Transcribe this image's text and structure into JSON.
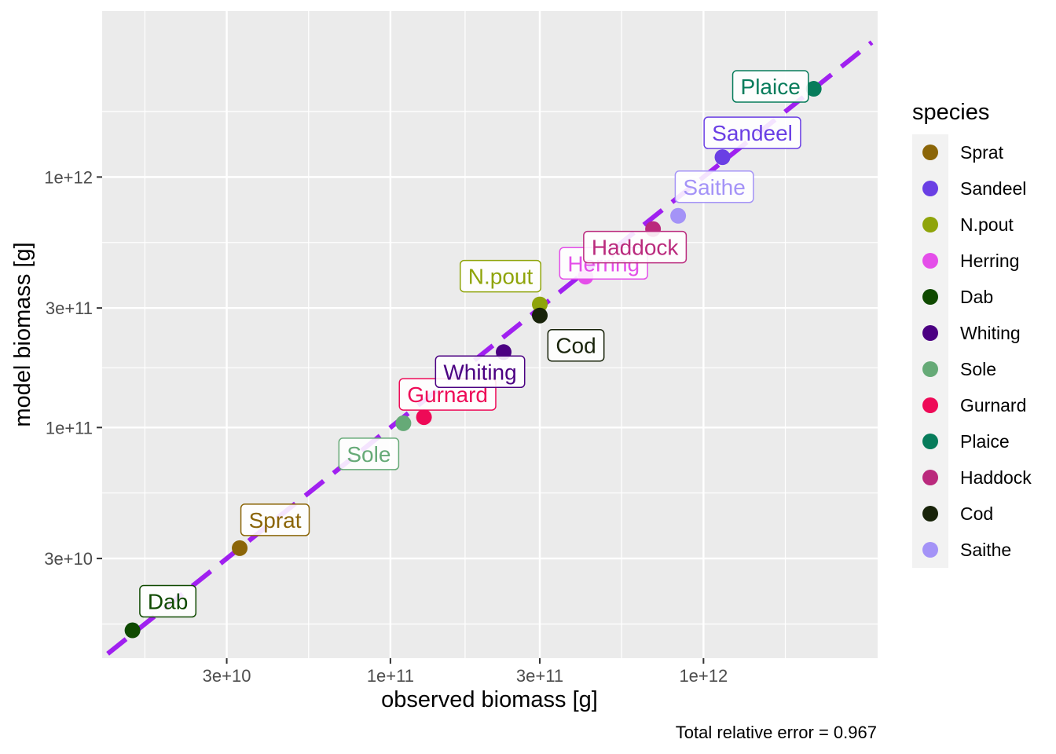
{
  "chart_data": {
    "type": "scatter",
    "x_scale": "log10",
    "y_scale": "log10",
    "xlabel": "observed biomass [g]",
    "ylabel": "model biomass [g]",
    "x_ticks": [
      {
        "value": 30000000000.0,
        "label": "3e+10"
      },
      {
        "value": 100000000000.0,
        "label": "1e+11"
      },
      {
        "value": 300000000000.0,
        "label": "3e+11"
      },
      {
        "value": 1000000000000.0,
        "label": "1e+12"
      }
    ],
    "y_ticks": [
      {
        "value": 30000000000.0,
        "label": "3e+10"
      },
      {
        "value": 100000000000.0,
        "label": "1e+11"
      },
      {
        "value": 300000000000.0,
        "label": "3e+11"
      },
      {
        "value": 1000000000000.0,
        "label": "1e+12"
      }
    ],
    "xlim": [
      12000000000.0,
      3600000000000.0
    ],
    "ylim": [
      12000000000.0,
      4600000000000.0
    ],
    "reference_line": {
      "style": "dashed",
      "color": "#a020f0",
      "slope": 1
    },
    "caption": "Total relative error = 0.967",
    "legend": {
      "title": "species",
      "position": "right"
    },
    "grid": true,
    "points": [
      {
        "species": "Sprat",
        "observed": 33000000000.0,
        "model": 33000000000.0,
        "color": "#8b6508"
      },
      {
        "species": "Sandeel",
        "observed": 1150000000000.0,
        "model": 1200000000000.0,
        "color": "#6a3fe4"
      },
      {
        "species": "N.pout",
        "observed": 300000000000.0,
        "model": 310000000000.0,
        "color": "#8fa40a"
      },
      {
        "species": "Herring",
        "observed": 420000000000.0,
        "model": 400000000000.0,
        "color": "#e44ee9"
      },
      {
        "species": "Dab",
        "observed": 15000000000.0,
        "model": 15500000000.0,
        "color": "#0f4a00"
      },
      {
        "species": "Whiting",
        "observed": 230000000000.0,
        "model": 200000000000.0,
        "color": "#4b0082"
      },
      {
        "species": "Sole",
        "observed": 110000000000.0,
        "model": 104000000000.0,
        "color": "#66aa77"
      },
      {
        "species": "Gurnard",
        "observed": 128000000000.0,
        "model": 110000000000.0,
        "color": "#ee0a57"
      },
      {
        "species": "Plaice",
        "observed": 2250000000000.0,
        "model": 2250000000000.0,
        "color": "#077c5b"
      },
      {
        "species": "Haddock",
        "observed": 690000000000.0,
        "model": 620000000000.0,
        "color": "#ba2a7d"
      },
      {
        "species": "Cod",
        "observed": 300000000000.0,
        "model": 280000000000.0,
        "color": "#18230a"
      },
      {
        "species": "Saithe",
        "observed": 830000000000.0,
        "model": 700000000000.0,
        "color": "#a493f7"
      }
    ]
  }
}
